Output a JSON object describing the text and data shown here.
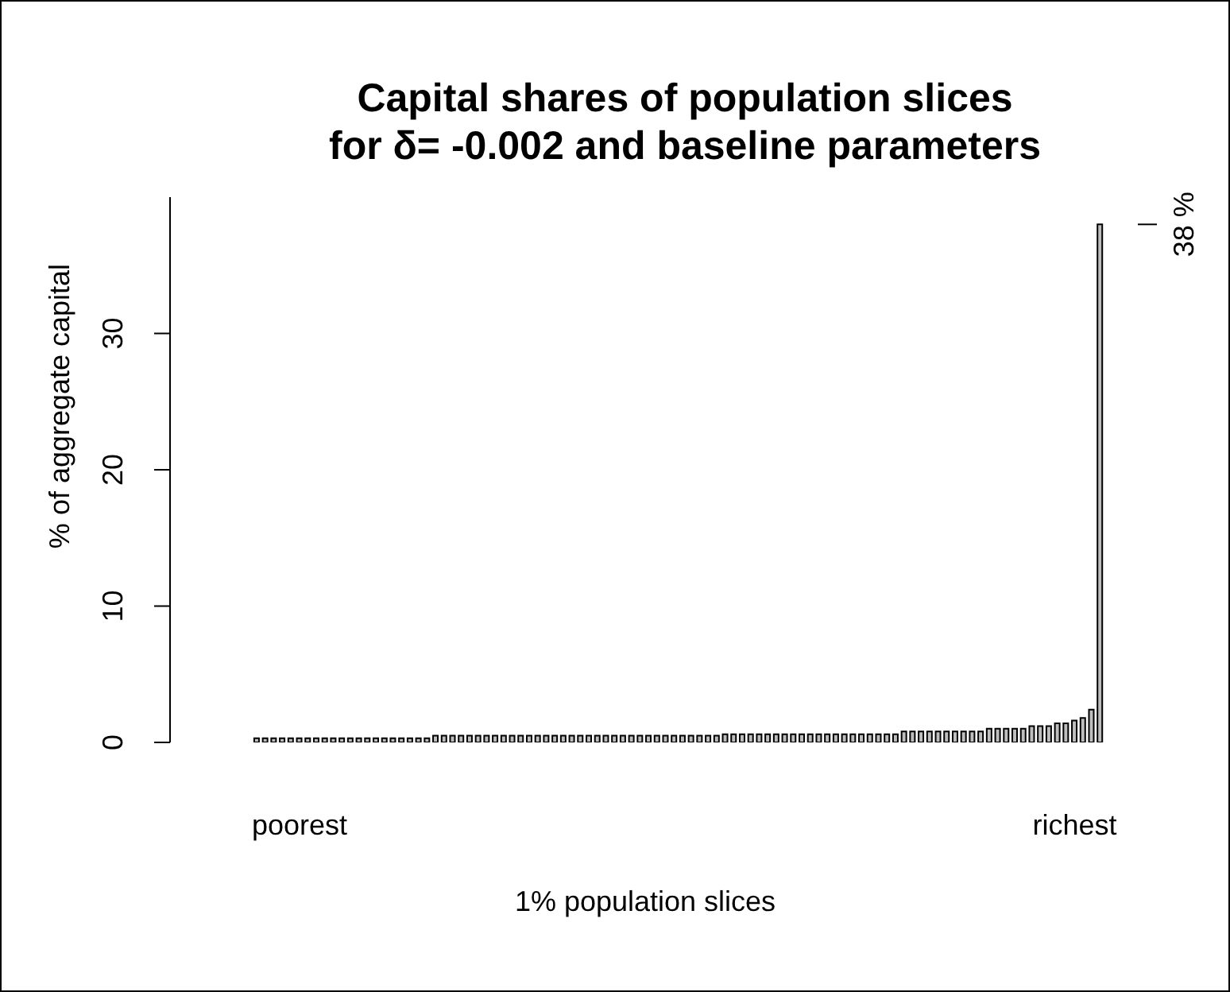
{
  "chart_data": {
    "type": "bar",
    "title": "Capital shares of population slices\nfor δ= -0.002 and baseline parameters",
    "xlabel": "1% population slices",
    "ylabel": "% of aggregate capital",
    "categories": [
      null,
      null,
      null,
      null,
      null,
      "poorest",
      null,
      null,
      null,
      null,
      null,
      null,
      null,
      null,
      null,
      null,
      null,
      null,
      null,
      null,
      null,
      null,
      null,
      null,
      null,
      null,
      null,
      null,
      null,
      null,
      null,
      null,
      null,
      null,
      null,
      null,
      null,
      null,
      null,
      null,
      null,
      null,
      null,
      null,
      null,
      null,
      null,
      null,
      null,
      null,
      null,
      null,
      null,
      null,
      null,
      null,
      null,
      null,
      null,
      null,
      null,
      null,
      null,
      null,
      null,
      null,
      null,
      null,
      null,
      null,
      null,
      null,
      null,
      null,
      null,
      null,
      null,
      null,
      null,
      null,
      null,
      null,
      null,
      null,
      null,
      null,
      null,
      null,
      null,
      null,
      null,
      null,
      null,
      null,
      null,
      null,
      "richest",
      null,
      null,
      null
    ],
    "values": [
      0.3,
      0.3,
      0.3,
      0.3,
      0.3,
      0.3,
      0.3,
      0.3,
      0.3,
      0.3,
      0.3,
      0.3,
      0.3,
      0.3,
      0.3,
      0.3,
      0.3,
      0.3,
      0.3,
      0.3,
      0.3,
      0.5,
      0.5,
      0.5,
      0.5,
      0.5,
      0.5,
      0.5,
      0.5,
      0.5,
      0.5,
      0.5,
      0.5,
      0.5,
      0.5,
      0.5,
      0.5,
      0.5,
      0.5,
      0.5,
      0.5,
      0.5,
      0.5,
      0.5,
      0.5,
      0.5,
      0.5,
      0.5,
      0.5,
      0.5,
      0.5,
      0.5,
      0.5,
      0.5,
      0.5,
      0.6,
      0.6,
      0.6,
      0.6,
      0.6,
      0.6,
      0.6,
      0.6,
      0.6,
      0.6,
      0.6,
      0.6,
      0.6,
      0.6,
      0.6,
      0.6,
      0.6,
      0.6,
      0.6,
      0.6,
      0.6,
      0.8,
      0.8,
      0.8,
      0.8,
      0.8,
      0.8,
      0.8,
      0.8,
      0.8,
      0.8,
      1.0,
      1.0,
      1.0,
      1.0,
      1.0,
      1.2,
      1.2,
      1.2,
      1.4,
      1.4,
      1.6,
      1.8,
      2.4,
      38
    ],
    "color": "#bebebe",
    "ylim": [
      0,
      40
    ],
    "yticks": [
      0,
      10,
      20,
      30
    ],
    "annotations": [
      "38 %"
    ]
  }
}
